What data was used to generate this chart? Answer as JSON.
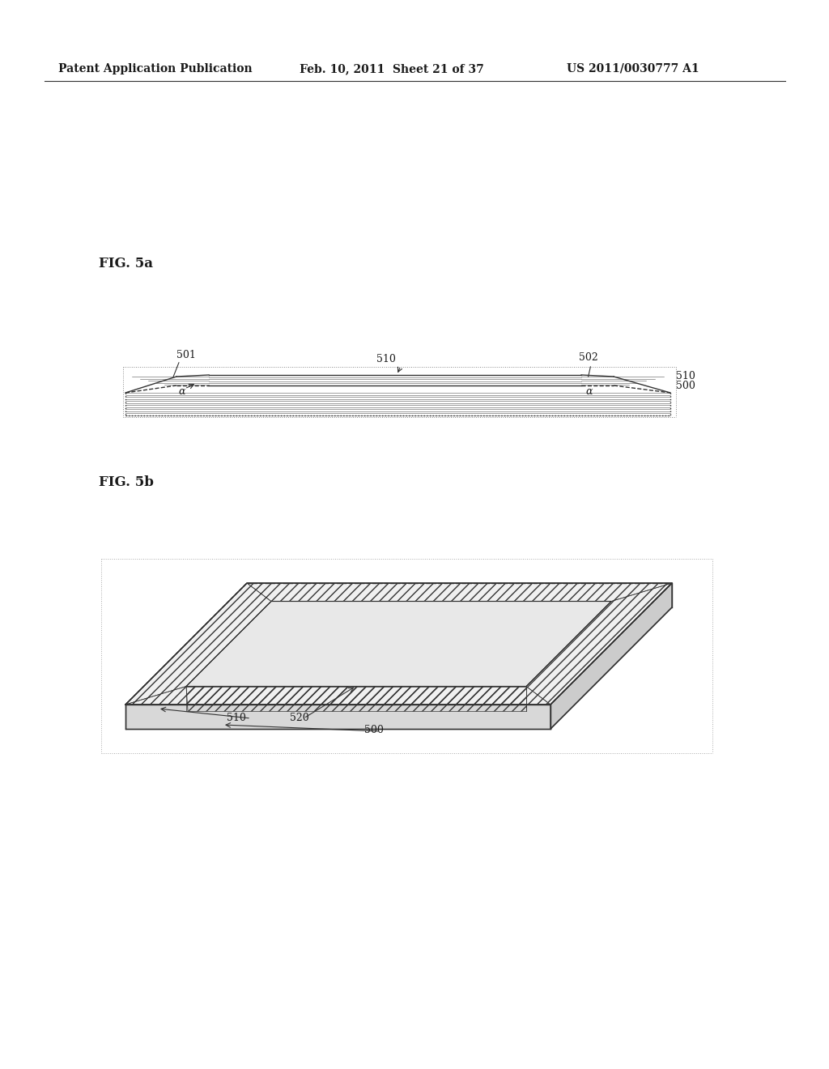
{
  "background_color": "#ffffff",
  "header_left": "Patent Application Publication",
  "header_mid": "Feb. 10, 2011  Sheet 21 of 37",
  "header_right": "US 2011/0030777 A1",
  "fig5a_label": "FIG. 5a",
  "fig5b_label": "FIG. 5b",
  "label_501": "501",
  "label_502": "502",
  "label_510_top": "510",
  "label_510_right1": "510",
  "label_500_right": "500",
  "label_510_bot": "510",
  "label_520_bot": "520",
  "label_500_bot": "500",
  "alpha_label": "α",
  "line_color": "#333333",
  "hatch_color": "#555555",
  "text_color": "#1a1a1a"
}
